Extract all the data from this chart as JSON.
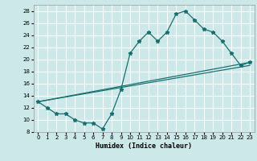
{
  "xlabel": "Humidex (Indice chaleur)",
  "bg_color": "#cce8e8",
  "grid_color": "#ffffff",
  "line_color": "#1a7070",
  "xlim": [
    -0.5,
    23.5
  ],
  "ylim": [
    8,
    29
  ],
  "yticks": [
    8,
    10,
    12,
    14,
    16,
    18,
    20,
    22,
    24,
    26,
    28
  ],
  "xticks": [
    0,
    1,
    2,
    3,
    4,
    5,
    6,
    7,
    8,
    9,
    10,
    11,
    12,
    13,
    14,
    15,
    16,
    17,
    18,
    19,
    20,
    21,
    22,
    23
  ],
  "line1_x": [
    0,
    1,
    2,
    3,
    4,
    5,
    6,
    7,
    8,
    9,
    10,
    11,
    12,
    13,
    14,
    15,
    16,
    17,
    18,
    19,
    20,
    21,
    22,
    23
  ],
  "line1_y": [
    13,
    12,
    11,
    11,
    10,
    9.5,
    9.5,
    8.5,
    11,
    15,
    21,
    23,
    24.5,
    23,
    24.5,
    27.5,
    28,
    26.5,
    25,
    24.5,
    23,
    21,
    19,
    19.5
  ],
  "line2_x": [
    0,
    23
  ],
  "line2_y": [
    13,
    19.5
  ],
  "line3_x": [
    0,
    23
  ],
  "line3_y": [
    13,
    19
  ]
}
